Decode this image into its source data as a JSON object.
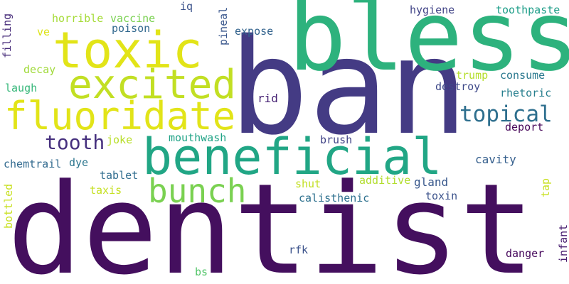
{
  "word_cloud": {
    "words": [
      {
        "text": "dentist",
        "color": "#440f5e"
      },
      {
        "text": "ban",
        "color": "#443b84"
      },
      {
        "text": "bless",
        "color": "#2db27d"
      },
      {
        "text": "toxic",
        "color": "#e2e418"
      },
      {
        "text": "excited",
        "color": "#c2df23"
      },
      {
        "text": "fluoridate",
        "color": "#e2e418"
      },
      {
        "text": "beneficial",
        "color": "#21a685"
      },
      {
        "text": "bunch",
        "color": "#7ad151"
      },
      {
        "text": "topical",
        "color": "#2e6f8e"
      },
      {
        "text": "tooth",
        "color": "#46307e"
      },
      {
        "text": "horrible",
        "color": "#a5db36"
      },
      {
        "text": "vaccine",
        "color": "#7ad151"
      },
      {
        "text": "iq",
        "color": "#3b528b"
      },
      {
        "text": "hygiene",
        "color": "#414487"
      },
      {
        "text": "toothpaste",
        "color": "#1f9e89"
      },
      {
        "text": "poison",
        "color": "#31688e"
      },
      {
        "text": "ve",
        "color": "#dde318"
      },
      {
        "text": "expose",
        "color": "#33638d"
      },
      {
        "text": "pineal",
        "color": "#39568c"
      },
      {
        "text": "filling",
        "color": "#472c7a"
      },
      {
        "text": "decay",
        "color": "#a0da39"
      },
      {
        "text": "trump",
        "color": "#b5de2b"
      },
      {
        "text": "consume",
        "color": "#2a788e"
      },
      {
        "text": "laugh",
        "color": "#35b779"
      },
      {
        "text": "destroy",
        "color": "#3e4989"
      },
      {
        "text": "rhetoric",
        "color": "#277f8e"
      },
      {
        "text": "rid",
        "color": "#482475"
      },
      {
        "text": "deport",
        "color": "#450457"
      },
      {
        "text": "joke",
        "color": "#b8de29"
      },
      {
        "text": "mouthwash",
        "color": "#20a386"
      },
      {
        "text": "brush",
        "color": "#414487"
      },
      {
        "text": "cavity",
        "color": "#355f8d"
      },
      {
        "text": "chemtrail",
        "color": "#30698e"
      },
      {
        "text": "dye",
        "color": "#2b758e"
      },
      {
        "text": "gland",
        "color": "#38588c"
      },
      {
        "text": "tablet",
        "color": "#2f6c8e"
      },
      {
        "text": "additive",
        "color": "#b2dd2d"
      },
      {
        "text": "shut",
        "color": "#c2df23"
      },
      {
        "text": "taxis",
        "color": "#c5e021"
      },
      {
        "text": "toxin",
        "color": "#3b528b"
      },
      {
        "text": "calisthenic",
        "color": "#2d708e"
      },
      {
        "text": "tap",
        "color": "#c8e020"
      },
      {
        "text": "bottled",
        "color": "#c8e020"
      },
      {
        "text": "infant",
        "color": "#481d6f"
      },
      {
        "text": "rfk",
        "color": "#3b528b"
      },
      {
        "text": "danger",
        "color": "#46085c"
      },
      {
        "text": "bs",
        "color": "#52c569"
      }
    ]
  }
}
